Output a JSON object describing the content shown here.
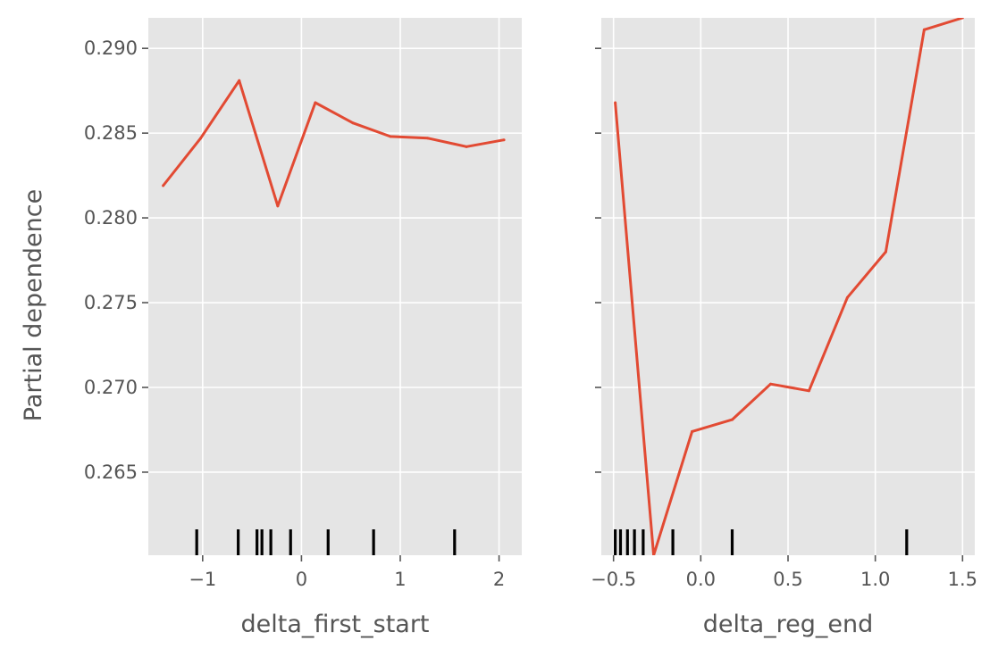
{
  "chart_data": [
    {
      "type": "line",
      "xlabel": "delta_first_start",
      "ylabel": "Partial dependence",
      "xlim": [
        -1.55,
        2.23
      ],
      "ylim": [
        0.2601,
        0.2918
      ],
      "x_ticks": [
        -1,
        0,
        1,
        2
      ],
      "x_tick_labels": [
        "−1",
        "0",
        "1",
        "2"
      ],
      "y_ticks": [
        0.265,
        0.27,
        0.275,
        0.28,
        0.285,
        0.29
      ],
      "y_tick_labels": [
        "0.265",
        "0.270",
        "0.275",
        "0.280",
        "0.285",
        "0.290"
      ],
      "grid": true,
      "series": [
        {
          "color": "#E24A33",
          "x": [
            -1.4,
            -1.02,
            -0.63,
            -0.24,
            0.14,
            0.52,
            0.9,
            1.28,
            1.67,
            2.05
          ],
          "y": [
            0.2819,
            0.2847,
            0.2881,
            0.2807,
            0.2868,
            0.2856,
            0.2848,
            0.2847,
            0.2842,
            0.2846
          ]
        }
      ],
      "rug_ticks": [
        -1.06,
        -0.64,
        -0.45,
        -0.4,
        -0.31,
        -0.11,
        0.27,
        0.73,
        1.55
      ]
    },
    {
      "type": "line",
      "xlabel": "delta_reg_end",
      "ylabel": "",
      "xlim": [
        -0.57,
        1.57
      ],
      "ylim": [
        0.2601,
        0.2918
      ],
      "x_ticks": [
        -0.5,
        0.0,
        0.5,
        1.0,
        1.5
      ],
      "x_tick_labels": [
        "−0.5",
        "0.0",
        "0.5",
        "1.0",
        "1.5"
      ],
      "y_ticks": [
        0.265,
        0.27,
        0.275,
        0.28,
        0.285,
        0.29
      ],
      "y_tick_labels": [],
      "grid": true,
      "series": [
        {
          "color": "#E24A33",
          "x": [
            -0.49,
            -0.27,
            -0.05,
            0.18,
            0.4,
            0.62,
            0.84,
            1.06,
            1.28,
            1.5
          ],
          "y": [
            0.2868,
            0.2601,
            0.2674,
            0.2681,
            0.2702,
            0.2698,
            0.2753,
            0.278,
            0.2911,
            0.2918
          ]
        }
      ],
      "rug_ticks": [
        -0.49,
        -0.46,
        -0.42,
        -0.38,
        -0.33,
        -0.16,
        0.18,
        1.18
      ]
    }
  ],
  "colors": {
    "background": "#E5E5E5",
    "grid": "#FFFFFF",
    "line": "#E24A33",
    "rug": "#000000",
    "text": "#555555"
  }
}
